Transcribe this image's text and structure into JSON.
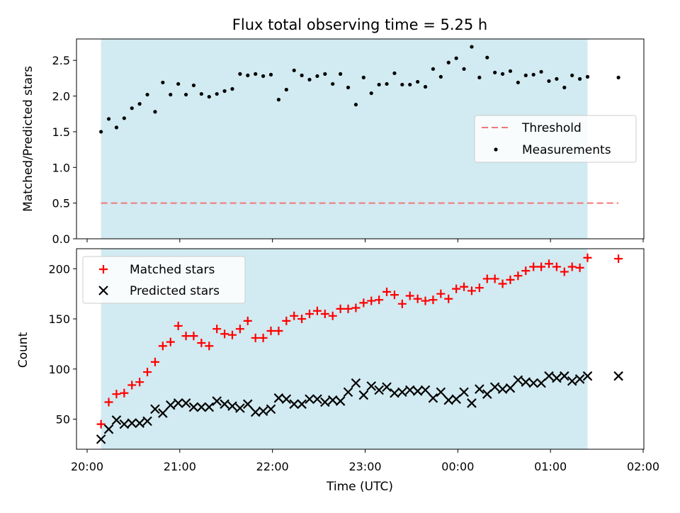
{
  "title": "Flux total observing time = 5.25 h",
  "colors": {
    "shade": "#add8e6",
    "threshold": "#f07878",
    "matched": "#ff0000",
    "predicted": "#000000",
    "measurement": "#000000"
  },
  "chart_data": [
    {
      "type": "scatter",
      "ylabel": "Matched/Predicted stars",
      "ylim": [
        0,
        2.8
      ],
      "yticks": [
        "0.0",
        "0.5",
        "1.0",
        "1.5",
        "2.0",
        "2.5"
      ],
      "xlim": [
        "20:00",
        "02:00"
      ],
      "shaded_interval": [
        "20:09",
        "01:24"
      ],
      "threshold": {
        "name": "Threshold",
        "value": 0.5,
        "x_range": [
          "20:09",
          "01:44"
        ],
        "style": "dashed"
      },
      "legend": {
        "position": "center-right",
        "entries": [
          "Threshold",
          "Measurements"
        ]
      },
      "series": [
        {
          "name": "Measurements",
          "points": [
            [
              "20:09",
              1.5
            ],
            [
              "20:14",
              1.68
            ],
            [
              "20:19",
              1.56
            ],
            [
              "20:24",
              1.69
            ],
            [
              "20:29",
              1.83
            ],
            [
              "20:34",
              1.89
            ],
            [
              "20:39",
              2.02
            ],
            [
              "20:44",
              1.78
            ],
            [
              "20:49",
              2.19
            ],
            [
              "20:54",
              2.02
            ],
            [
              "20:59",
              2.17
            ],
            [
              "21:04",
              2.02
            ],
            [
              "21:09",
              2.15
            ],
            [
              "21:14",
              2.03
            ],
            [
              "21:19",
              1.99
            ],
            [
              "21:24",
              2.03
            ],
            [
              "21:29",
              2.07
            ],
            [
              "21:34",
              2.1
            ],
            [
              "21:39",
              2.31
            ],
            [
              "21:44",
              2.29
            ],
            [
              "21:49",
              2.31
            ],
            [
              "21:54",
              2.28
            ],
            [
              "21:59",
              2.3
            ],
            [
              "22:04",
              1.95
            ],
            [
              "22:09",
              2.09
            ],
            [
              "22:14",
              2.36
            ],
            [
              "22:19",
              2.29
            ],
            [
              "22:24",
              2.23
            ],
            [
              "22:29",
              2.28
            ],
            [
              "22:34",
              2.31
            ],
            [
              "22:39",
              2.17
            ],
            [
              "22:44",
              2.31
            ],
            [
              "22:49",
              2.12
            ],
            [
              "22:54",
              1.88
            ],
            [
              "22:59",
              2.26
            ],
            [
              "23:04",
              2.04
            ],
            [
              "23:09",
              2.16
            ],
            [
              "23:14",
              2.17
            ],
            [
              "23:19",
              2.32
            ],
            [
              "23:24",
              2.16
            ],
            [
              "23:29",
              2.16
            ],
            [
              "23:34",
              2.2
            ],
            [
              "23:39",
              2.13
            ],
            [
              "23:44",
              2.38
            ],
            [
              "23:49",
              2.27
            ],
            [
              "23:54",
              2.47
            ],
            [
              "23:59",
              2.53
            ],
            [
              "00:04",
              2.38
            ],
            [
              "00:09",
              2.69
            ],
            [
              "00:14",
              2.26
            ],
            [
              "00:19",
              2.54
            ],
            [
              "00:24",
              2.33
            ],
            [
              "00:29",
              2.31
            ],
            [
              "00:34",
              2.35
            ],
            [
              "00:39",
              2.19
            ],
            [
              "00:44",
              2.29
            ],
            [
              "00:49",
              2.3
            ],
            [
              "00:54",
              2.34
            ],
            [
              "00:59",
              2.21
            ],
            [
              "01:04",
              2.24
            ],
            [
              "01:09",
              2.12
            ],
            [
              "01:14",
              2.29
            ],
            [
              "01:19",
              2.24
            ],
            [
              "01:24",
              2.27
            ],
            [
              "01:44",
              2.26
            ]
          ]
        }
      ]
    },
    {
      "type": "scatter",
      "xlabel": "Time (UTC)",
      "ylabel": "Count",
      "ylim": [
        20,
        220
      ],
      "yticks": [
        "50",
        "100",
        "150",
        "200"
      ],
      "xlim": [
        "20:00",
        "02:00"
      ],
      "xticks": [
        "20:00",
        "21:00",
        "22:00",
        "23:00",
        "00:00",
        "01:00",
        "02:00"
      ],
      "shaded_interval": [
        "20:09",
        "01:24"
      ],
      "legend": {
        "position": "top-left",
        "entries": [
          "Matched stars",
          "Predicted stars"
        ]
      },
      "series": [
        {
          "name": "Matched stars",
          "marker": "+",
          "points": [
            [
              "20:09",
              45
            ],
            [
              "20:14",
              67
            ],
            [
              "20:19",
              75
            ],
            [
              "20:24",
              76
            ],
            [
              "20:29",
              84
            ],
            [
              "20:34",
              87
            ],
            [
              "20:39",
              97
            ],
            [
              "20:44",
              107
            ],
            [
              "20:49",
              123
            ],
            [
              "20:54",
              127
            ],
            [
              "20:59",
              143
            ],
            [
              "21:04",
              133
            ],
            [
              "21:09",
              133
            ],
            [
              "21:14",
              126
            ],
            [
              "21:19",
              123
            ],
            [
              "21:24",
              140
            ],
            [
              "21:29",
              135
            ],
            [
              "21:34",
              134
            ],
            [
              "21:39",
              140
            ],
            [
              "21:44",
              148
            ],
            [
              "21:49",
              131
            ],
            [
              "21:54",
              131
            ],
            [
              "21:59",
              138
            ],
            [
              "22:04",
              138
            ],
            [
              "22:09",
              148
            ],
            [
              "22:14",
              153
            ],
            [
              "22:19",
              150
            ],
            [
              "22:24",
              155
            ],
            [
              "22:29",
              158
            ],
            [
              "22:34",
              155
            ],
            [
              "22:39",
              153
            ],
            [
              "22:44",
              160
            ],
            [
              "22:49",
              160
            ],
            [
              "22:54",
              161
            ],
            [
              "22:59",
              166
            ],
            [
              "23:04",
              168
            ],
            [
              "23:09",
              169
            ],
            [
              "23:14",
              177
            ],
            [
              "23:19",
              174
            ],
            [
              "23:24",
              165
            ],
            [
              "23:29",
              173
            ],
            [
              "23:34",
              170
            ],
            [
              "23:39",
              168
            ],
            [
              "23:44",
              169
            ],
            [
              "23:49",
              175
            ],
            [
              "23:54",
              170
            ],
            [
              "23:59",
              180
            ],
            [
              "00:04",
              182
            ],
            [
              "00:09",
              178
            ],
            [
              "00:14",
              181
            ],
            [
              "00:19",
              190
            ],
            [
              "00:24",
              190
            ],
            [
              "00:29",
              185
            ],
            [
              "00:34",
              189
            ],
            [
              "00:39",
              193
            ],
            [
              "00:44",
              198
            ],
            [
              "00:49",
              202
            ],
            [
              "00:54",
              202
            ],
            [
              "00:59",
              205
            ],
            [
              "01:04",
              202
            ],
            [
              "01:09",
              197
            ],
            [
              "01:14",
              202
            ],
            [
              "01:19",
              201
            ],
            [
              "01:24",
              211
            ],
            [
              "01:44",
              210
            ]
          ]
        },
        {
          "name": "Predicted stars",
          "marker": "x",
          "points": [
            [
              "20:09",
              30
            ],
            [
              "20:14",
              40
            ],
            [
              "20:19",
              49
            ],
            [
              "20:24",
              45
            ],
            [
              "20:29",
              46
            ],
            [
              "20:34",
              46
            ],
            [
              "20:39",
              48
            ],
            [
              "20:44",
              60
            ],
            [
              "20:49",
              56
            ],
            [
              "20:54",
              64
            ],
            [
              "20:59",
              66
            ],
            [
              "21:04",
              66
            ],
            [
              "21:09",
              62
            ],
            [
              "21:14",
              62
            ],
            [
              "21:19",
              62
            ],
            [
              "21:24",
              68
            ],
            [
              "21:29",
              65
            ],
            [
              "21:34",
              63
            ],
            [
              "21:39",
              61
            ],
            [
              "21:44",
              65
            ],
            [
              "21:49",
              57
            ],
            [
              "21:54",
              58
            ],
            [
              "21:59",
              60
            ],
            [
              "22:04",
              71
            ],
            [
              "22:09",
              70
            ],
            [
              "22:14",
              65
            ],
            [
              "22:19",
              65
            ],
            [
              "22:24",
              70
            ],
            [
              "22:29",
              70
            ],
            [
              "22:34",
              67
            ],
            [
              "22:39",
              69
            ],
            [
              "22:44",
              68
            ],
            [
              "22:49",
              77
            ],
            [
              "22:54",
              86
            ],
            [
              "22:59",
              74
            ],
            [
              "23:04",
              83
            ],
            [
              "23:09",
              79
            ],
            [
              "23:14",
              82
            ],
            [
              "23:19",
              76
            ],
            [
              "23:24",
              77
            ],
            [
              "23:29",
              79
            ],
            [
              "23:34",
              78
            ],
            [
              "23:39",
              79
            ],
            [
              "23:44",
              71
            ],
            [
              "23:49",
              77
            ],
            [
              "23:54",
              69
            ],
            [
              "23:59",
              70
            ],
            [
              "00:04",
              77
            ],
            [
              "00:09",
              66
            ],
            [
              "00:14",
              80
            ],
            [
              "00:19",
              75
            ],
            [
              "00:24",
              82
            ],
            [
              "00:29",
              80
            ],
            [
              "00:34",
              81
            ],
            [
              "00:39",
              89
            ],
            [
              "00:44",
              87
            ],
            [
              "00:49",
              86
            ],
            [
              "00:54",
              86
            ],
            [
              "00:59",
              93
            ],
            [
              "01:04",
              91
            ],
            [
              "01:09",
              93
            ],
            [
              "01:14",
              88
            ],
            [
              "01:19",
              90
            ],
            [
              "01:24",
              93
            ],
            [
              "01:44",
              93
            ]
          ]
        }
      ]
    }
  ]
}
